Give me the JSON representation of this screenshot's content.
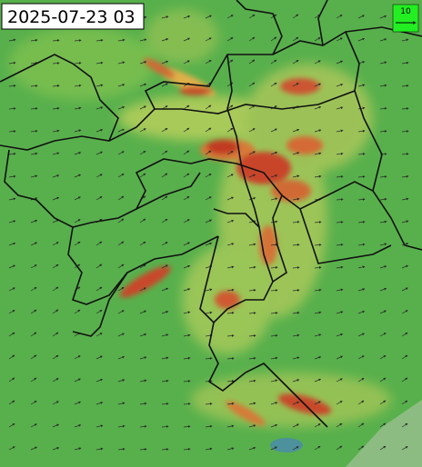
{
  "timestamp": "2025-07-23 03",
  "legend": {
    "label": "10"
  }
}
